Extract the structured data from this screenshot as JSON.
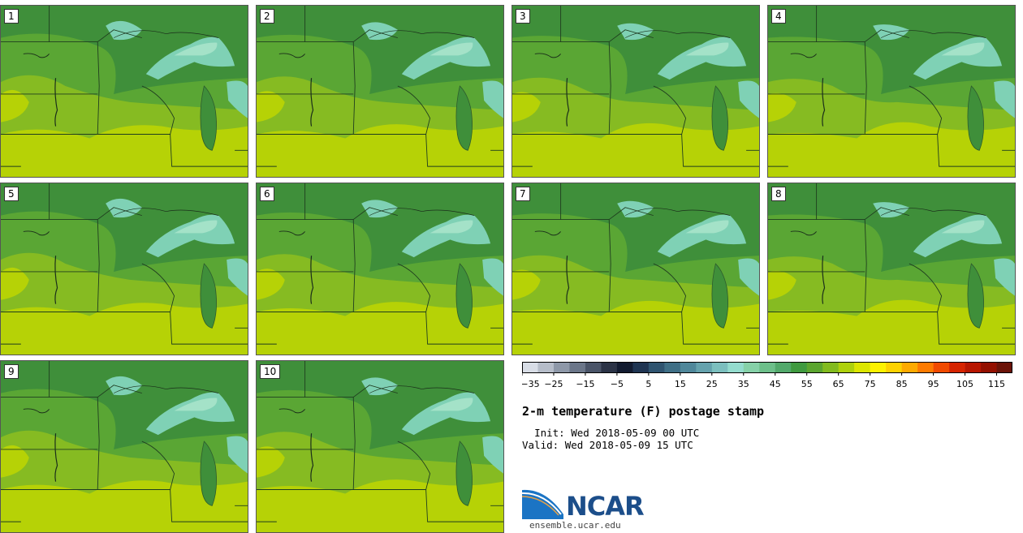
{
  "figure": {
    "title": "2-m temperature (F) postage stamp",
    "init_label": "Init:",
    "init_time": "Wed 2018-05-09 00 UTC",
    "valid_label": "Valid:",
    "valid_time": "Wed 2018-05-09 15 UTC"
  },
  "members": [
    "1",
    "2",
    "3",
    "4",
    "5",
    "6",
    "7",
    "8",
    "9",
    "10"
  ],
  "legend": {
    "tick_labels": [
      "−35",
      "−25",
      "−15",
      "−5",
      "5",
      "15",
      "25",
      "35",
      "45",
      "55",
      "65",
      "75",
      "85",
      "95",
      "105",
      "115"
    ],
    "bin_start": -35,
    "bin_width": 5,
    "bin_colors": [
      "#d8dde6",
      "#b6bdc9",
      "#8e98a8",
      "#6b7689",
      "#4a5468",
      "#2b3346",
      "#121b30",
      "#1f3552",
      "#2f5470",
      "#3f6f86",
      "#4f879a",
      "#65a2ad",
      "#7cbfbe",
      "#94dcce",
      "#86d1a8",
      "#6dbf8a",
      "#52a96b",
      "#3f9a3f",
      "#5ba52f",
      "#82bb1e",
      "#aed10c",
      "#dce600",
      "#fdf200",
      "#fdd200",
      "#fdaa00",
      "#fd7b00",
      "#f04a00",
      "#d62400",
      "#b71600",
      "#931000",
      "#6b1308"
    ]
  },
  "colors": {
    "deep_green": "#3f8f3a",
    "mid_green": "#5aa634",
    "light_green": "#86bb22",
    "yellow_green": "#b6d206",
    "lake": "#7fd1b5",
    "lake_light": "#a4e2c8"
  },
  "logo": {
    "org": "NCAR",
    "url": "ensemble.ucar.edu"
  }
}
